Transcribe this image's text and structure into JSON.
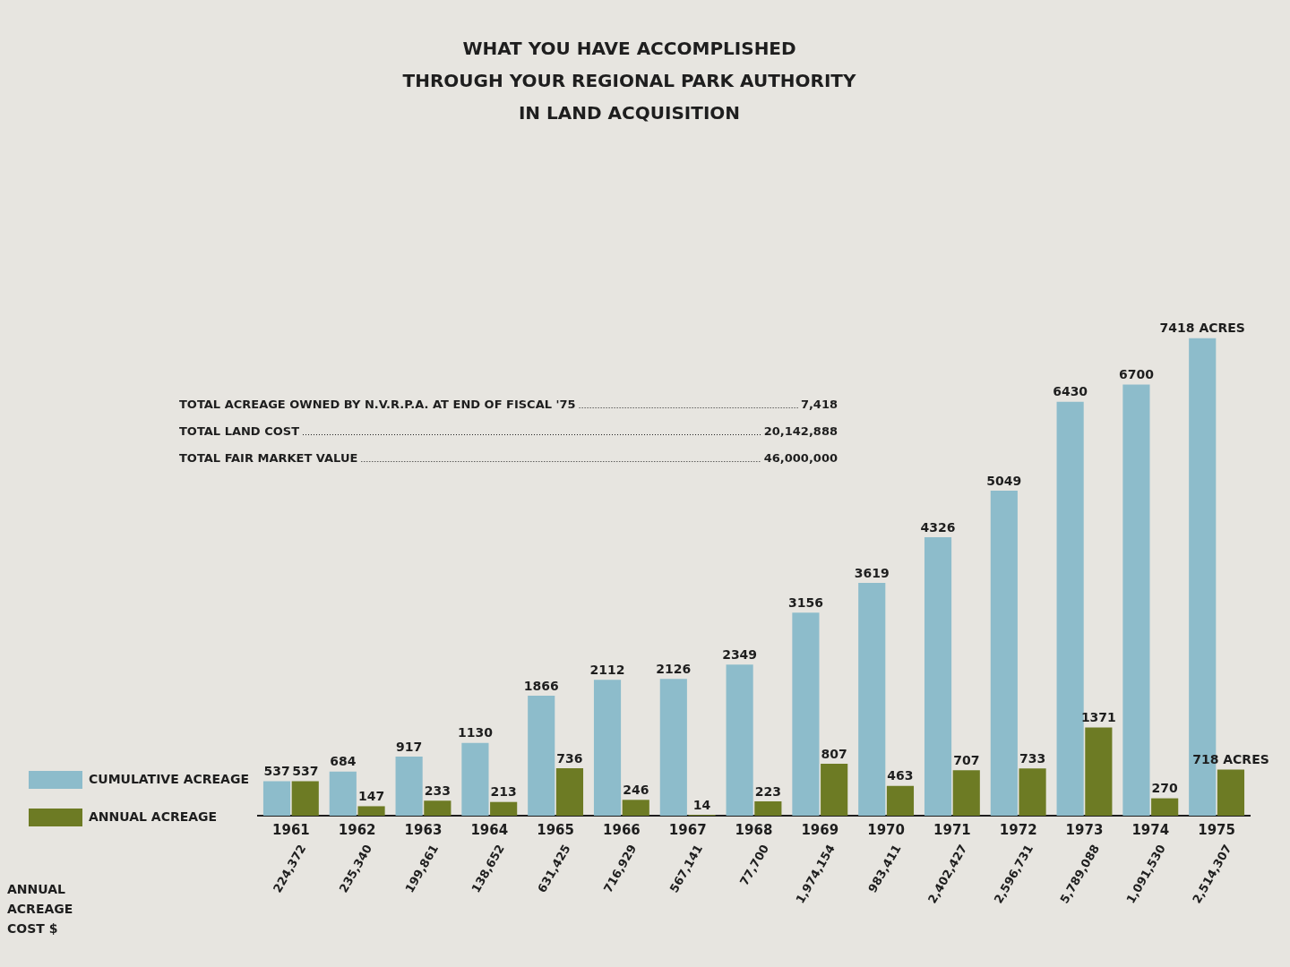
{
  "chart_data": {
    "type": "bar",
    "title": "WHAT YOU HAVE ACCOMPLISHED\nTHROUGH YOUR REGIONAL PARK AUTHORITY\nIN LAND ACQUISITION",
    "categories": [
      "1961",
      "1962",
      "1963",
      "1964",
      "1965",
      "1966",
      "1967",
      "1968",
      "1969",
      "1970",
      "1971",
      "1972",
      "1973",
      "1974",
      "1975"
    ],
    "series": [
      {
        "name": "CUMULATIVE ACREAGE",
        "color": "#8dbccb",
        "values": [
          537,
          684,
          917,
          1130,
          1866,
          2112,
          2126,
          2349,
          3156,
          3619,
          4326,
          5049,
          6430,
          6700,
          7418
        ],
        "value_labels": [
          "537",
          "684",
          "917",
          "1130",
          "1866",
          "2112",
          "2126",
          "2349",
          "3156",
          "3619",
          "4326",
          "5049",
          "6430",
          "6700",
          "7418 ACRES"
        ]
      },
      {
        "name": "ANNUAL ACREAGE",
        "color": "#6d7b24",
        "values": [
          537,
          147,
          233,
          213,
          736,
          246,
          14,
          223,
          807,
          463,
          707,
          733,
          1371,
          270,
          718
        ],
        "value_labels": [
          "537",
          "147",
          "233",
          "213",
          "736",
          "246",
          "14",
          "223",
          "807",
          "463",
          "707",
          "733",
          "1371",
          "270",
          "718 ACRES"
        ]
      }
    ],
    "annotations": [
      "TOTAL ACREAGE OWNED BY N.V.R.P.A. AT END OF FISCAL '75 7,418",
      "TOTAL LAND COST 20,142,888",
      "TOTAL FAIR MARKET VALUE 46,000,000",
      "ANNUAL ACREAGE COST $",
      "224,372",
      "235,340",
      "199,861",
      "138,652",
      "631,425",
      "716,929",
      "567,141",
      "77,700",
      "1,974,154",
      "983,411",
      "2,402,427",
      "2,596,731",
      "5,789,088",
      "1,091,530",
      "2,514,307"
    ],
    "legend": "left"
  }
}
